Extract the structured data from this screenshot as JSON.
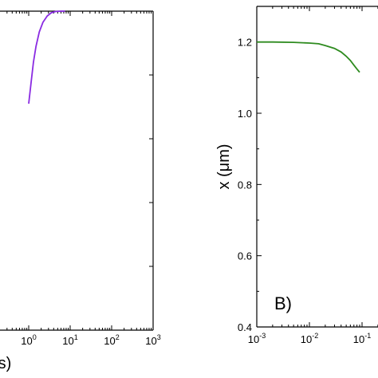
{
  "chart_data": [
    {
      "panel": "A",
      "type": "line",
      "xscale": "log",
      "xlim": [
        0.001,
        1000
      ],
      "x_tick_values": [
        1,
        10,
        100,
        1000
      ],
      "x_tick_labels": [
        {
          "base": "10",
          "exp": "0"
        },
        {
          "base": "10",
          "exp": "1"
        },
        {
          "base": "10",
          "exp": "2"
        },
        {
          "base": "10",
          "exp": "3"
        }
      ],
      "xlabel_visible_fragment": "s)",
      "ylim": [
        0,
        1
      ],
      "series": [
        {
          "color": "#8a2be2",
          "x": [
            1.0,
            1.15,
            1.3,
            1.5,
            1.8,
            2.2,
            2.8,
            3.5,
            4.5,
            6.0,
            7.5
          ],
          "y": [
            0.71,
            0.78,
            0.84,
            0.89,
            0.935,
            0.965,
            0.985,
            0.995,
            0.999,
            1.0,
            1.0
          ]
        }
      ]
    },
    {
      "panel": "B",
      "panel_tag": "B)",
      "type": "line",
      "xscale": "log",
      "xlim": [
        0.001,
        1
      ],
      "x_tick_values": [
        0.001,
        0.01,
        0.1
      ],
      "x_tick_labels": [
        {
          "base": "10",
          "exp": "-3"
        },
        {
          "base": "10",
          "exp": "-2"
        },
        {
          "base": "10",
          "exp": "-1"
        }
      ],
      "ylabel": "x (μm)",
      "ylim": [
        0.4,
        1.3
      ],
      "y_tick_values": [
        0.4,
        0.6,
        0.8,
        1.0,
        1.2
      ],
      "y_tick_labels": [
        "0.4",
        "0.6",
        "0.8",
        "1.0",
        "1.2"
      ],
      "series": [
        {
          "color": "#2e8b1f",
          "x": [
            0.001,
            0.002,
            0.005,
            0.01,
            0.015,
            0.02,
            0.03,
            0.04,
            0.05,
            0.06,
            0.07,
            0.08,
            0.09
          ],
          "y": [
            1.2,
            1.2,
            1.199,
            1.197,
            1.195,
            1.19,
            1.182,
            1.172,
            1.16,
            1.148,
            1.135,
            1.124,
            1.115
          ]
        }
      ]
    }
  ]
}
